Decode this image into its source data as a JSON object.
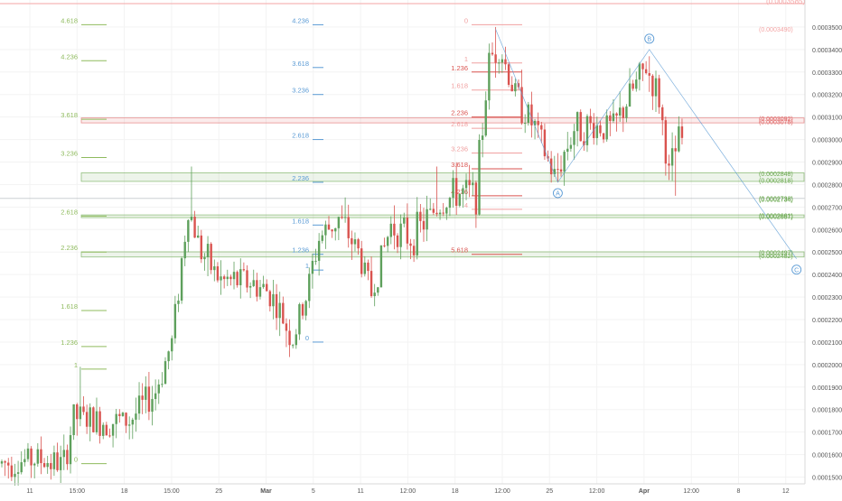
{
  "colors": {
    "background": "#ffffff",
    "grid": "#f3f3f3",
    "axis_text": "#555555",
    "candle_up": "#5ea05c",
    "candle_down": "#d9534f",
    "fib_green": "#8fbb5e",
    "fib_blue": "#5b9bd5",
    "fib_red": "#d9534f",
    "fib_pink": "#f0a0a0",
    "price_level_green": "#6aa84f",
    "price_level_red": "#e06666",
    "price_level_pink": "#f4a6a6",
    "wave_line": "#5b9bd5"
  },
  "chart_data": {
    "type": "candlestick",
    "title": "",
    "xlabel": "",
    "ylabel": "",
    "ylim": [
      0.000147,
      0.000362
    ],
    "price_axis_ticks": [
      "0.0003500",
      "0.0003400",
      "0.0003300",
      "0.0003200",
      "0.0003100",
      "0.0003000",
      "0.0002900",
      "0.0002800",
      "0.0002700",
      "0.0002600",
      "0.0002500",
      "0.0002400",
      "0.0002300",
      "0.0002200",
      "0.0002100",
      "0.0002000",
      "0.0001900",
      "0.0001800",
      "0.0001700",
      "0.0001600",
      "0.0001500"
    ],
    "time_axis_ticks": [
      "11",
      "15:00",
      "18",
      "15:00",
      "25",
      "Mar",
      "5",
      "11",
      "12:00",
      "18",
      "12:00",
      "25",
      "12:00",
      "Apr",
      "12:00",
      "8",
      "12"
    ],
    "time_axis_bold": [
      "Mar",
      "Apr"
    ],
    "price_axis_top_partial": "(0.0003585)",
    "path_keypoints": [
      {
        "i": 0,
        "p": 0.000156
      },
      {
        "i": 12,
        "p": 0.000158
      },
      {
        "i": 20,
        "p": 0.0001555
      },
      {
        "i": 23,
        "p": 0.000177
      },
      {
        "i": 30,
        "p": 0.0001745
      },
      {
        "i": 40,
        "p": 0.000175
      },
      {
        "i": 48,
        "p": 0.000188
      },
      {
        "i": 53,
        "p": 0.00021
      },
      {
        "i": 58,
        "p": 0.00027
      },
      {
        "i": 62,
        "p": 0.00025
      },
      {
        "i": 68,
        "p": 0.000237
      },
      {
        "i": 76,
        "p": 0.000237
      },
      {
        "i": 83,
        "p": 0.000232
      },
      {
        "i": 90,
        "p": 0.000211
      },
      {
        "i": 94,
        "p": 0.00023
      },
      {
        "i": 98,
        "p": 0.000256
      },
      {
        "i": 104,
        "p": 0.000265
      },
      {
        "i": 110,
        "p": 0.00025
      },
      {
        "i": 114,
        "p": 0.000232
      },
      {
        "i": 120,
        "p": 0.000262
      },
      {
        "i": 126,
        "p": 0.000256
      },
      {
        "i": 134,
        "p": 0.00027
      },
      {
        "i": 140,
        "p": 0.000276
      },
      {
        "i": 146,
        "p": 0.000276
      },
      {
        "i": 150,
        "p": 0.000335
      },
      {
        "i": 153,
        "p": 0.000342
      },
      {
        "i": 158,
        "p": 0.00032
      },
      {
        "i": 164,
        "p": 0.000305
      },
      {
        "i": 170,
        "p": 0.000283
      },
      {
        "i": 176,
        "p": 0.000305
      },
      {
        "i": 182,
        "p": 0.000306
      },
      {
        "i": 188,
        "p": 0.000305
      },
      {
        "i": 194,
        "p": 0.000322
      },
      {
        "i": 198,
        "p": 0.000332
      },
      {
        "i": 202,
        "p": 0.000318
      },
      {
        "i": 205,
        "p": 0.000284
      },
      {
        "i": 208,
        "p": 0.0003
      }
    ],
    "candle_count": 209,
    "wicks": [
      {
        "i": 24,
        "high": 0.000199
      },
      {
        "i": 58,
        "high": 0.000288
      },
      {
        "i": 90,
        "low": 0.000207
      },
      {
        "i": 133,
        "high": 0.000288
      },
      {
        "i": 151,
        "high": 0.00035
      },
      {
        "i": 170,
        "low": 0.000281
      },
      {
        "i": 198,
        "high": 0.000337
      },
      {
        "i": 206,
        "low": 0.000275
      }
    ],
    "fib_sets": [
      {
        "color": "fib_green",
        "levels": [
          {
            "label": "4.618",
            "p": 0.000351
          },
          {
            "label": "4.236",
            "p": 0.000335
          },
          {
            "label": "3.618",
            "p": 0.000309
          },
          {
            "label": "3.236",
            "p": 0.000292
          },
          {
            "label": "2.618",
            "p": 0.000266
          },
          {
            "label": "2.236",
            "p": 0.00025
          },
          {
            "label": "1.618",
            "p": 0.000224
          },
          {
            "label": "1.236",
            "p": 0.000208
          },
          {
            "label": "1",
            "p": 0.000198
          },
          {
            "label": "0",
            "p": 0.000156
          }
        ]
      },
      {
        "color": "fib_blue",
        "levels": [
          {
            "label": "4.236",
            "p": 0.000351
          },
          {
            "label": "3.618",
            "p": 0.000332
          },
          {
            "label": "3.236",
            "p": 0.00032
          },
          {
            "label": "2.618",
            "p": 0.0003
          },
          {
            "label": "2.236",
            "p": 0.000281
          },
          {
            "label": "1.618",
            "p": 0.000262
          },
          {
            "label": "1.236",
            "p": 0.000249
          },
          {
            "label": "1",
            "p": 0.000242
          },
          {
            "label": "0",
            "p": 0.00021
          }
        ]
      },
      {
        "color": "fib_pink",
        "levels": [
          {
            "label": "0",
            "p": 0.000351
          },
          {
            "label": "1",
            "p": 0.000334
          },
          {
            "label": "1.618",
            "p": 0.000322
          },
          {
            "label": "2.618",
            "p": 0.000305
          },
          {
            "label": "3.236",
            "p": 0.000294
          },
          {
            "label": "4",
            "p": 0.000269
          }
        ]
      },
      {
        "color": "fib_red",
        "levels": [
          {
            "label": "1.236",
            "p": 0.00033
          },
          {
            "label": "2.236",
            "p": 0.00031
          },
          {
            "label": "3.618",
            "p": 0.000287
          },
          {
            "label": "4.236",
            "p": 0.000275
          },
          {
            "label": "5.618",
            "p": 0.000249
          }
        ]
      }
    ],
    "price_levels": [
      {
        "label": "(0.0003490)",
        "p": 0.000349,
        "color": "price_level_pink"
      },
      {
        "label": "(0.0003092)",
        "p": 0.0003092,
        "color": "price_level_red"
      },
      {
        "label": "(0.0003078)",
        "p": 0.0003078,
        "color": "price_level_red"
      },
      {
        "label": "(0.0002848)",
        "p": 0.0002848,
        "color": "price_level_green"
      },
      {
        "label": "(0.0002818)",
        "p": 0.0002818,
        "color": "price_level_green"
      },
      {
        "label": "(0.0002738)",
        "p": 0.0002738,
        "color": "price_level_green"
      },
      {
        "label": "(0.0002734)",
        "p": 0.0002734,
        "color": "price_level_green"
      },
      {
        "label": "(0.0002661)",
        "p": 0.0002661,
        "color": "price_level_green"
      },
      {
        "label": "(0.0002657)",
        "p": 0.0002657,
        "color": "price_level_green"
      },
      {
        "label": "(0.0002497)",
        "p": 0.0002497,
        "color": "price_level_green"
      },
      {
        "label": "(0.0002482)",
        "p": 0.0002482,
        "color": "price_level_green"
      }
    ],
    "price_zones": [
      {
        "from": 0.0003092,
        "to": 0.0003078,
        "color": "price_level_red"
      },
      {
        "from": 0.0002848,
        "to": 0.0002818,
        "color": "price_level_green"
      },
      {
        "from": 0.0002661,
        "to": 0.0002657,
        "color": "price_level_green"
      },
      {
        "from": 0.0002497,
        "to": 0.0002482,
        "color": "price_level_green"
      }
    ],
    "crosshair_price": 0.0002738,
    "waves": [
      {
        "label": "A",
        "i": 170,
        "p": 0.000281
      },
      {
        "label": "B",
        "i": 198,
        "p": 0.00034
      },
      {
        "label": "C",
        "i": 243,
        "p": 0.000247
      }
    ],
    "wave_start": {
      "i": 151,
      "p": 0.000349
    }
  }
}
